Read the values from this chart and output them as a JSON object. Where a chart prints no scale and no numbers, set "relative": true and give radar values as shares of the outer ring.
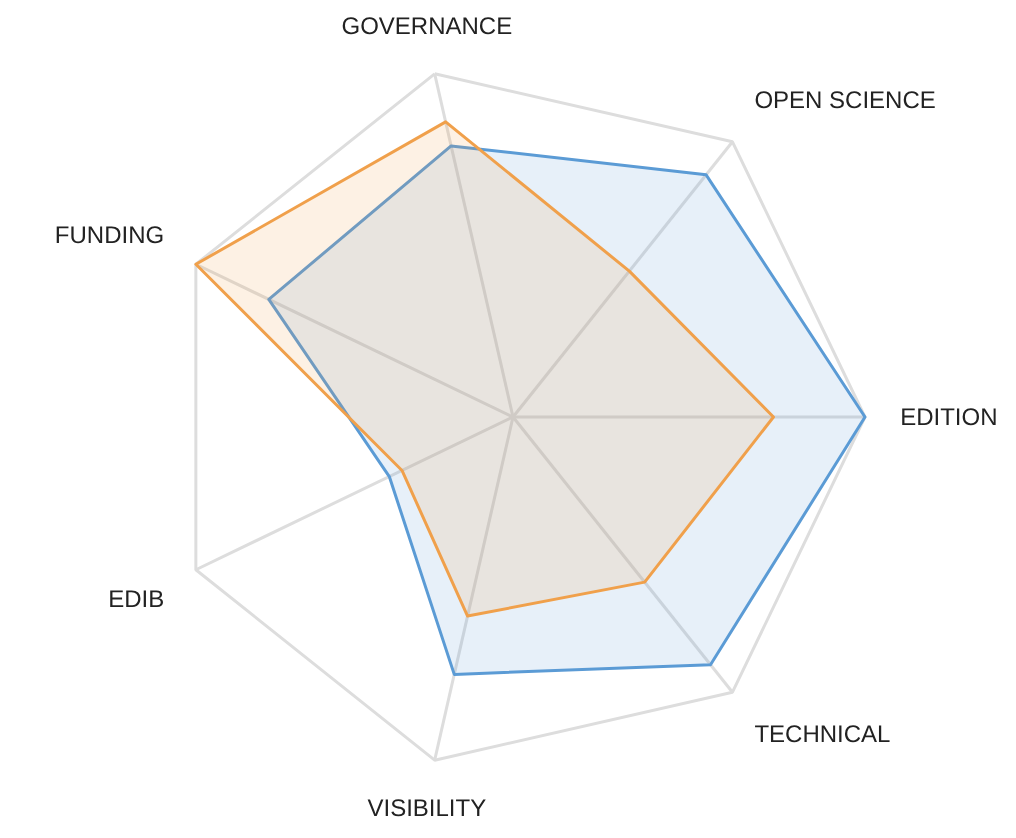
{
  "chart_data": {
    "type": "radar",
    "relative": true,
    "categories": [
      "GOVERNANCE",
      "OPEN SCIENCE",
      "EDITION",
      "TECHNICAL",
      "VISIBILITY",
      "EDIB",
      "FUNDING"
    ],
    "series": [
      {
        "color": "#5b9bd5",
        "values": [
          0.79,
          0.88,
          1.0,
          0.9,
          0.75,
          0.39,
          0.77
        ]
      },
      {
        "color": "#f0a04b",
        "values": [
          0.86,
          0.53,
          0.74,
          0.6,
          0.58,
          0.35,
          1.0
        ]
      }
    ]
  }
}
